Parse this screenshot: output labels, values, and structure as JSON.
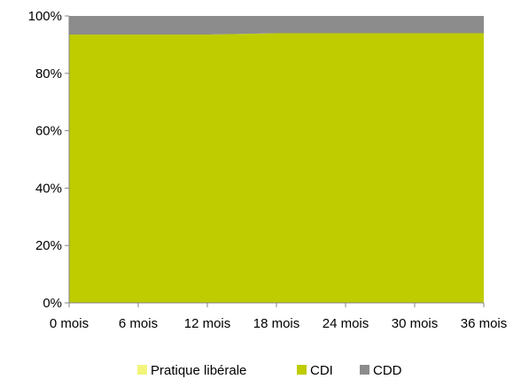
{
  "chart_data": {
    "type": "area",
    "stacked_percent": true,
    "categories": [
      "0 mois",
      "6 mois",
      "12 mois",
      "18 mois",
      "24 mois",
      "30 mois",
      "36 mois"
    ],
    "series": [
      {
        "name": "Pratique libérale",
        "color": "#f2f57a",
        "values": [
          0.0,
          0.0,
          0.0,
          0.0,
          0.0,
          0.0,
          0.0
        ]
      },
      {
        "name": "CDI",
        "color": "#bfcc00",
        "values": [
          93.5,
          93.5,
          93.5,
          94.0,
          94.0,
          94.0,
          94.0
        ]
      },
      {
        "name": "CDD",
        "color": "#8c8c8c",
        "values": [
          6.5,
          6.5,
          6.5,
          6.0,
          6.0,
          6.0,
          6.0
        ]
      }
    ],
    "y_ticks": [
      "0%",
      "20%",
      "40%",
      "60%",
      "80%",
      "100%"
    ],
    "ylim": [
      0,
      100
    ],
    "grid": false,
    "legend_position": "bottom"
  }
}
